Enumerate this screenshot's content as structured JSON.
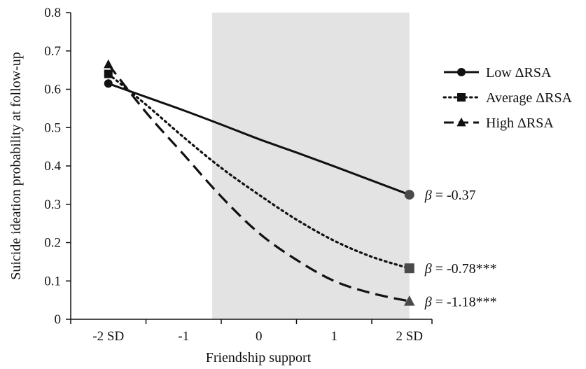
{
  "chart_data": {
    "type": "line",
    "xlabel": "Friendship support",
    "ylabel": "Suicide ideation probability at follow-up",
    "x_ticks": [
      "-2 SD",
      "-1",
      "0",
      "1",
      "2 SD"
    ],
    "x_tick_values": [
      -2,
      -1,
      0,
      1,
      2
    ],
    "y_ticks": [
      "0",
      "0.1",
      "0.2",
      "0.3",
      "0.4",
      "0.5",
      "0.6",
      "0.7",
      "0.8"
    ],
    "xlim": [
      -2.5,
      2.3
    ],
    "ylim": [
      0,
      0.8
    ],
    "shaded_region": {
      "x_from": -0.62,
      "x_to": 2.0,
      "color": "#e3e3e3"
    },
    "legend_position": "right",
    "series": [
      {
        "name": "Low ΔRSA",
        "style": "solid",
        "marker": "circle",
        "color": "#111111",
        "x": [
          -2,
          -1.5,
          -1,
          -0.5,
          0,
          0.5,
          1,
          1.5,
          2
        ],
        "y": [
          0.615,
          0.58,
          0.545,
          0.508,
          0.47,
          0.435,
          0.399,
          0.362,
          0.325
        ]
      },
      {
        "name": "Average ΔRSA",
        "style": "dotted",
        "marker": "square",
        "color": "#111111",
        "x": [
          -2,
          -1.5,
          -1,
          -0.5,
          0,
          0.5,
          1,
          1.5,
          2
        ],
        "y": [
          0.64,
          0.56,
          0.475,
          0.395,
          0.325,
          0.26,
          0.205,
          0.163,
          0.133
        ]
      },
      {
        "name": "High ΔRSA",
        "style": "dashed",
        "marker": "triangle",
        "color": "#111111",
        "x": [
          -2,
          -1.5,
          -1,
          -0.5,
          0,
          0.5,
          1,
          1.5,
          2
        ],
        "y": [
          0.665,
          0.54,
          0.43,
          0.32,
          0.225,
          0.155,
          0.1,
          0.068,
          0.047
        ]
      }
    ],
    "annotations": [
      {
        "symbol": "β",
        "text": " = -0.37",
        "series": 0
      },
      {
        "symbol": "β",
        "text": " = -0.78***",
        "series": 1
      },
      {
        "symbol": "β",
        "text": " = -1.18***",
        "series": 2
      }
    ]
  }
}
